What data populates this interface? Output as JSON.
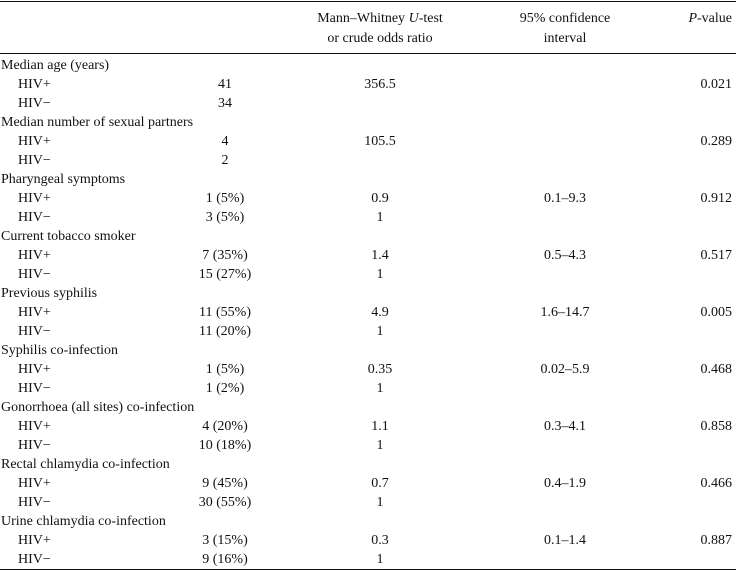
{
  "header": {
    "col2_line1_pre": "Mann–Whitney ",
    "col2_line1_italic": "U",
    "col2_line1_post": "-test",
    "col2_line2": "or crude odds ratio",
    "col3_line1": "95% confidence",
    "col3_line2": "interval",
    "col4_italic": "P",
    "col4_post": "-value"
  },
  "sections": [
    {
      "title": "Median age (years)",
      "rows": [
        {
          "label": "HIV+",
          "value": "41",
          "stat": "356.5",
          "ci": "",
          "p": "0.021"
        },
        {
          "label": "HIV−",
          "value": "34",
          "stat": "",
          "ci": "",
          "p": ""
        }
      ]
    },
    {
      "title": "Median number of sexual partners",
      "rows": [
        {
          "label": "HIV+",
          "value": "4",
          "stat": "105.5",
          "ci": "",
          "p": "0.289"
        },
        {
          "label": "HIV−",
          "value": "2",
          "stat": "",
          "ci": "",
          "p": ""
        }
      ]
    },
    {
      "title": "Pharyngeal symptoms",
      "rows": [
        {
          "label": "HIV+",
          "value": "1 (5%)",
          "stat": "0.9",
          "ci": "0.1–9.3",
          "p": "0.912"
        },
        {
          "label": "HIV−",
          "value": "3 (5%)",
          "stat": "1",
          "ci": "",
          "p": ""
        }
      ]
    },
    {
      "title": "Current tobacco smoker",
      "rows": [
        {
          "label": "HIV+",
          "value": "7 (35%)",
          "stat": "1.4",
          "ci": "0.5–4.3",
          "p": "0.517"
        },
        {
          "label": "HIV−",
          "value": "15 (27%)",
          "stat": "1",
          "ci": "",
          "p": ""
        }
      ]
    },
    {
      "title": "Previous syphilis",
      "rows": [
        {
          "label": "HIV+",
          "value": "11 (55%)",
          "stat": "4.9",
          "ci": "1.6–14.7",
          "p": "0.005"
        },
        {
          "label": "HIV−",
          "value": "11 (20%)",
          "stat": "1",
          "ci": "",
          "p": ""
        }
      ]
    },
    {
      "title": "Syphilis co-infection",
      "rows": [
        {
          "label": "HIV+",
          "value": "1 (5%)",
          "stat": "0.35",
          "ci": "0.02–5.9",
          "p": "0.468"
        },
        {
          "label": "HIV−",
          "value": "1 (2%)",
          "stat": "1",
          "ci": "",
          "p": ""
        }
      ]
    },
    {
      "title": "Gonorrhoea (all sites) co-infection",
      "rows": [
        {
          "label": "HIV+",
          "value": "4 (20%)",
          "stat": "1.1",
          "ci": "0.3–4.1",
          "p": "0.858"
        },
        {
          "label": "HIV−",
          "value": "10 (18%)",
          "stat": "1",
          "ci": "",
          "p": ""
        }
      ]
    },
    {
      "title": "Rectal chlamydia co-infection",
      "rows": [
        {
          "label": "HIV+",
          "value": "9 (45%)",
          "stat": "0.7",
          "ci": "0.4–1.9",
          "p": "0.466"
        },
        {
          "label": "HIV−",
          "value": "30 (55%)",
          "stat": "1",
          "ci": "",
          "p": ""
        }
      ]
    },
    {
      "title": "Urine chlamydia co-infection",
      "rows": [
        {
          "label": "HIV+",
          "value": "3 (15%)",
          "stat": "0.3",
          "ci": "0.1–1.4",
          "p": "0.887"
        },
        {
          "label": "HIV−",
          "value": "9 (16%)",
          "stat": "1",
          "ci": "",
          "p": ""
        }
      ]
    }
  ]
}
